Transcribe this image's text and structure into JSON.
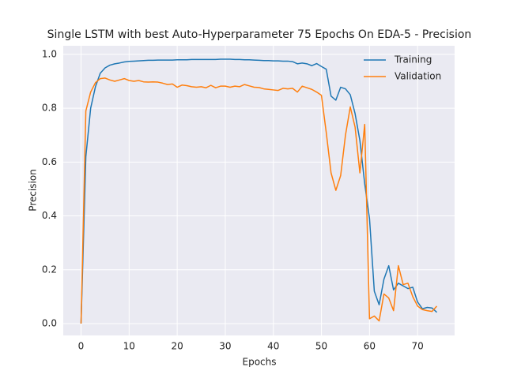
{
  "chart_data": {
    "type": "line",
    "title": "Single LSTM with best Auto-Hyperparameter 75 Epochs On EDA-5 - Precision",
    "x_label": "Epochs",
    "y_label": "Precision",
    "x": [
      0,
      1,
      2,
      3,
      4,
      5,
      6,
      7,
      8,
      9,
      10,
      11,
      12,
      13,
      14,
      15,
      16,
      17,
      18,
      19,
      20,
      21,
      22,
      23,
      24,
      25,
      26,
      27,
      28,
      29,
      30,
      31,
      32,
      33,
      34,
      35,
      36,
      37,
      38,
      39,
      40,
      41,
      42,
      43,
      44,
      45,
      46,
      47,
      48,
      49,
      50,
      51,
      52,
      53,
      54,
      55,
      56,
      57,
      58,
      59,
      60,
      61,
      62,
      63,
      64,
      65,
      66,
      67,
      68,
      69,
      70,
      71,
      72,
      73,
      74
    ],
    "series": [
      {
        "name": "Training",
        "color": "#1f77b4",
        "values": [
          0.0,
          0.62,
          0.8,
          0.88,
          0.93,
          0.95,
          0.96,
          0.965,
          0.968,
          0.972,
          0.974,
          0.975,
          0.976,
          0.977,
          0.978,
          0.978,
          0.979,
          0.979,
          0.979,
          0.979,
          0.98,
          0.98,
          0.98,
          0.981,
          0.981,
          0.981,
          0.981,
          0.981,
          0.981,
          0.982,
          0.982,
          0.982,
          0.981,
          0.981,
          0.98,
          0.98,
          0.979,
          0.978,
          0.977,
          0.977,
          0.976,
          0.976,
          0.975,
          0.975,
          0.973,
          0.965,
          0.968,
          0.965,
          0.958,
          0.966,
          0.955,
          0.945,
          0.845,
          0.83,
          0.878,
          0.872,
          0.85,
          0.78,
          0.68,
          0.52,
          0.39,
          0.12,
          0.07,
          0.165,
          0.215,
          0.125,
          0.15,
          0.14,
          0.13,
          0.135,
          0.08,
          0.055,
          0.06,
          0.058,
          0.042
        ]
      },
      {
        "name": "Validation",
        "color": "#ff7f0e",
        "values": [
          0.0,
          0.79,
          0.86,
          0.895,
          0.91,
          0.912,
          0.905,
          0.9,
          0.905,
          0.91,
          0.903,
          0.9,
          0.903,
          0.898,
          0.897,
          0.898,
          0.897,
          0.893,
          0.888,
          0.89,
          0.878,
          0.886,
          0.884,
          0.88,
          0.878,
          0.88,
          0.876,
          0.885,
          0.876,
          0.882,
          0.882,
          0.878,
          0.882,
          0.88,
          0.888,
          0.883,
          0.878,
          0.877,
          0.872,
          0.87,
          0.868,
          0.866,
          0.874,
          0.872,
          0.874,
          0.86,
          0.882,
          0.876,
          0.87,
          0.86,
          0.848,
          0.71,
          0.56,
          0.495,
          0.55,
          0.7,
          0.805,
          0.73,
          0.56,
          0.74,
          0.018,
          0.028,
          0.01,
          0.11,
          0.095,
          0.048,
          0.215,
          0.145,
          0.15,
          0.1,
          0.065,
          0.052,
          0.048,
          0.045,
          0.065
        ]
      }
    ],
    "xlim": [
      -3.7,
      77.7
    ],
    "ylim": [
      -0.044,
      1.032
    ],
    "xticks": [
      0,
      10,
      20,
      30,
      40,
      50,
      60,
      70
    ],
    "yticks": [
      {
        "value": 0,
        "label": "0.0"
      },
      0.2,
      0.4,
      0.6,
      0.8,
      {
        "value": 1,
        "label": "1.0"
      }
    ],
    "grid": true,
    "legend": "upper right"
  }
}
